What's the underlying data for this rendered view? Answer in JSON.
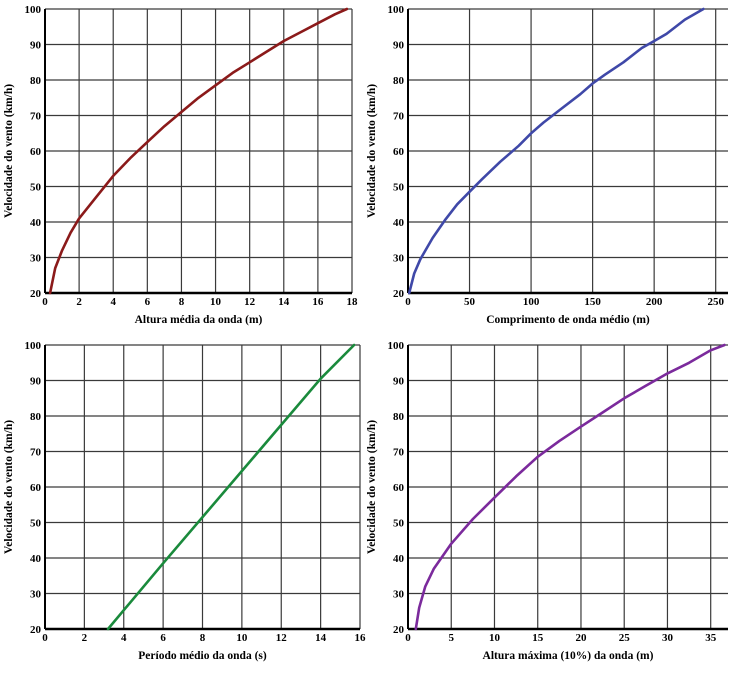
{
  "chart_data": [
    {
      "type": "line",
      "xlabel": "Altura média da onda (m)",
      "ylabel": "Velocidade do vento (km/h)",
      "xlim": [
        0,
        18
      ],
      "ylim": [
        20,
        100
      ],
      "xticks": [
        0,
        2,
        4,
        6,
        8,
        10,
        12,
        14,
        16,
        18
      ],
      "yticks": [
        20,
        30,
        40,
        50,
        60,
        70,
        80,
        90,
        100
      ],
      "grid": true,
      "color": "#8b1a1a",
      "series": [
        {
          "x": [
            0.3,
            0.6,
            1.0,
            1.5,
            2.0,
            3.0,
            4.0,
            5.0,
            6.0,
            7.0,
            8.0,
            9.0,
            10.0,
            11.0,
            12.0,
            13.0,
            14.0,
            15.0,
            16.0,
            17.0,
            17.7
          ],
          "y": [
            20,
            27,
            32,
            37,
            41,
            47,
            53,
            58,
            62.5,
            67,
            71,
            75,
            78.5,
            82,
            85,
            88,
            91,
            93.5,
            96,
            98.5,
            100
          ]
        }
      ]
    },
    {
      "type": "line",
      "xlabel": "Comprimento de onda médio  (m)",
      "ylabel": "Velocidade do vento (km/h)",
      "xlim": [
        0,
        260
      ],
      "ylim": [
        20,
        100
      ],
      "xticks": [
        0,
        50,
        100,
        150,
        200,
        250
      ],
      "yticks": [
        20,
        30,
        40,
        50,
        60,
        70,
        80,
        90,
        100
      ],
      "grid": true,
      "color": "#3f48a8",
      "series": [
        {
          "x": [
            1,
            5,
            10,
            20,
            30,
            40,
            50,
            60,
            75,
            90,
            100,
            110,
            125,
            140,
            150,
            160,
            175,
            190,
            200,
            210,
            225,
            240
          ],
          "y": [
            20,
            25.5,
            29.5,
            35.5,
            40.5,
            45,
            48.5,
            52,
            57,
            61.5,
            65,
            68,
            72,
            76,
            79,
            81.5,
            85,
            89,
            91,
            93,
            97,
            100
          ]
        }
      ]
    },
    {
      "type": "line",
      "xlabel": "Período médio da onda (s)",
      "ylabel": "Velocidade do vento (km/h)",
      "xlim": [
        0,
        16
      ],
      "ylim": [
        20,
        100
      ],
      "xticks": [
        0,
        2,
        4,
        6,
        8,
        10,
        12,
        14,
        16
      ],
      "yticks": [
        20,
        30,
        40,
        50,
        60,
        70,
        80,
        90,
        100
      ],
      "grid": true,
      "color": "#1a8a3c",
      "series": [
        {
          "x": [
            3.2,
            6.0,
            10.0,
            14.0,
            15.7
          ],
          "y": [
            20,
            38.5,
            64.5,
            90.5,
            100
          ]
        }
      ]
    },
    {
      "type": "line",
      "xlabel": "Altura máxima (10%)  da onda (m)",
      "ylabel": "Velocidade do vento (km/h)",
      "xlim": [
        0,
        37
      ],
      "ylim": [
        20,
        100
      ],
      "xticks": [
        0,
        5,
        10,
        15,
        20,
        25,
        30,
        35
      ],
      "yticks": [
        20,
        30,
        40,
        50,
        60,
        70,
        80,
        90,
        100
      ],
      "grid": true,
      "color": "#7b2a9c",
      "series": [
        {
          "x": [
            0.9,
            1.3,
            2.0,
            3.0,
            5.0,
            7.5,
            10.0,
            12.5,
            15.0,
            17.5,
            20.0,
            22.5,
            25.0,
            27.5,
            30.0,
            32.5,
            35.0,
            36.6
          ],
          "y": [
            20,
            26,
            32,
            37,
            44,
            51,
            57,
            63,
            68.5,
            73,
            77,
            81,
            85,
            88.5,
            92,
            95,
            98.5,
            100
          ]
        }
      ]
    }
  ]
}
